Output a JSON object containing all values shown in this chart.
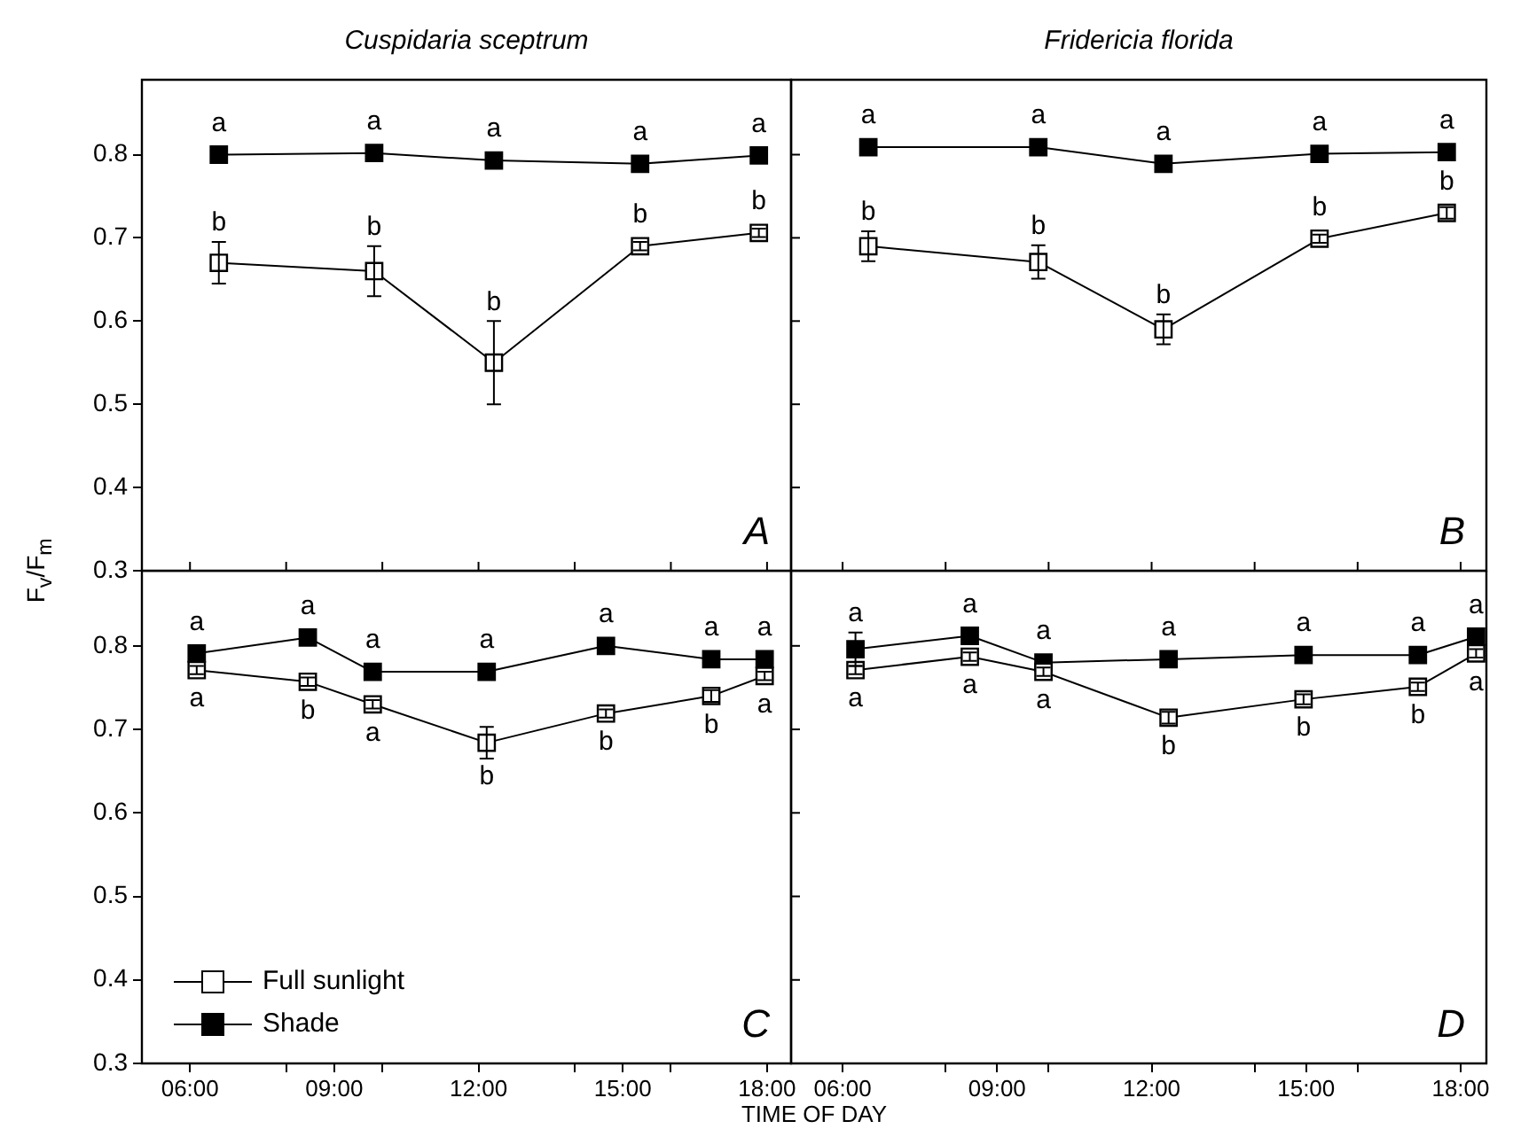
{
  "chart_data": [
    {
      "type": "line",
      "title": "Cuspidaria sceptrum",
      "ylabel": "F$_{v}$/F$_{m}$",
      "xlim": [
        5,
        18.5
      ],
      "ylim": [
        0.3,
        0.89
      ],
      "xticks": [
        {
          "value": 6,
          "label": null
        },
        {
          "value": 8,
          "label": null
        },
        {
          "value": 10,
          "label": null
        },
        {
          "value": 12,
          "label": null
        },
        {
          "value": 14,
          "label": null
        },
        {
          "value": 16,
          "label": null
        },
        {
          "value": 18,
          "label": null
        }
      ],
      "yticks": [
        0.3,
        0.4,
        0.5,
        0.6,
        0.7,
        0.8
      ],
      "tick_labels": "y",
      "grid": false,
      "legend": false,
      "marker": "square",
      "line_style": "solid",
      "series": [
        {
          "color": "#ffffff",
          "x": [
            6.6,
            9.83,
            12.32,
            15.36,
            17.83
          ],
          "values": [
            0.67,
            0.66,
            0.55,
            0.69,
            0.706
          ],
          "errors": [
            0.025,
            0.03,
            0.05,
            0.005,
            0.005
          ]
        },
        {
          "color": "#000000",
          "x": [
            6.6,
            9.83,
            12.32,
            15.36,
            17.83
          ],
          "values": [
            0.8,
            0.802,
            0.793,
            0.789,
            0.799
          ]
        }
      ],
      "annotations": [
        "A",
        {
          "text": "b",
          "x": 6.6,
          "y": 0.67
        },
        {
          "text": "b",
          "x": 9.83,
          "y": 0.66
        },
        {
          "text": "b",
          "x": 12.32,
          "y": 0.55
        },
        {
          "text": "b",
          "x": 15.36,
          "y": 0.69
        },
        {
          "text": "b",
          "x": 17.83,
          "y": 0.706
        },
        {
          "text": "a",
          "x": 6.6,
          "y": 0.8
        },
        {
          "text": "a",
          "x": 9.83,
          "y": 0.802
        },
        {
          "text": "a",
          "x": 12.32,
          "y": 0.793
        },
        {
          "text": "a",
          "x": 15.36,
          "y": 0.789
        },
        {
          "text": "a",
          "x": 17.83,
          "y": 0.799
        }
      ]
    },
    {
      "type": "line",
      "title": "Fridericia florida",
      "xlim": [
        5,
        18.5
      ],
      "ylim": [
        0.3,
        0.89
      ],
      "xticks": [
        {
          "value": 6,
          "label": null
        },
        {
          "value": 8,
          "label": null
        },
        {
          "value": 10,
          "label": null
        },
        {
          "value": 12,
          "label": null
        },
        {
          "value": 14,
          "label": null
        },
        {
          "value": 16,
          "label": null
        },
        {
          "value": 18,
          "label": null
        }
      ],
      "yticks": [
        {
          "value": 0.3,
          "label": null
        },
        {
          "value": 0.4,
          "label": null
        },
        {
          "value": 0.5,
          "label": null
        },
        {
          "value": 0.6,
          "label": null
        },
        {
          "value": 0.7,
          "label": null
        },
        {
          "value": 0.8,
          "label": null
        }
      ],
      "tick_labels": false,
      "grid": false,
      "legend": false,
      "marker": "square",
      "line_style": "solid",
      "series": [
        {
          "color": "#ffffff",
          "x": [
            6.5,
            9.8,
            12.23,
            15.26,
            17.73
          ],
          "values": [
            0.69,
            0.671,
            0.59,
            0.699,
            0.73
          ],
          "errors": [
            0.018,
            0.02,
            0.018,
            0.005,
            0.007
          ]
        },
        {
          "color": "#000000",
          "x": [
            6.5,
            9.8,
            12.23,
            15.26,
            17.73
          ],
          "values": [
            0.809,
            0.809,
            0.789,
            0.801,
            0.803
          ]
        }
      ],
      "annotations": [
        "B",
        {
          "text": "b",
          "x": 6.5,
          "y": 0.69
        },
        {
          "text": "b",
          "x": 9.8,
          "y": 0.671
        },
        {
          "text": "b",
          "x": 12.23,
          "y": 0.59
        },
        {
          "text": "b",
          "x": 15.26,
          "y": 0.699
        },
        {
          "text": "b",
          "x": 17.73,
          "y": 0.73
        },
        {
          "text": "a",
          "x": 6.5,
          "y": 0.809
        },
        {
          "text": "a",
          "x": 9.8,
          "y": 0.809
        },
        {
          "text": "a",
          "x": 12.23,
          "y": 0.789
        },
        {
          "text": "a",
          "x": 15.26,
          "y": 0.801
        },
        {
          "text": "a",
          "x": 17.73,
          "y": 0.803
        }
      ]
    },
    {
      "type": "line",
      "xlabel": "TIME OF DAY",
      "xlim": [
        5,
        18.5
      ],
      "ylim": [
        0.3,
        0.89
      ],
      "xticks": [
        {
          "value": 6,
          "label": "06:00"
        },
        {
          "value": 8,
          "label": null
        },
        {
          "value": 9,
          "label": "09:00"
        },
        {
          "value": 10,
          "label": null
        },
        {
          "value": 12,
          "label": "12:00"
        },
        {
          "value": 14,
          "label": null
        },
        {
          "value": 15,
          "label": "15:00"
        },
        {
          "value": 16,
          "label": null
        },
        {
          "value": 18,
          "label": "18:00"
        }
      ],
      "yticks": [
        0.3,
        0.4,
        0.5,
        0.6,
        0.7,
        0.8
      ],
      "grid": false,
      "legend": "bottom left",
      "marker": "square",
      "line_style": "solid",
      "series": [
        {
          "name": "Full sunlight",
          "color": "#ffffff",
          "x": [
            6.14,
            8.45,
            9.8,
            12.17,
            14.65,
            16.84,
            17.95
          ],
          "values": [
            0.771,
            0.757,
            0.73,
            0.684,
            0.719,
            0.74,
            0.764
          ],
          "errors": [
            0.005,
            0.005,
            0.005,
            0.019,
            0.005,
            0.007,
            0.005
          ]
        },
        {
          "name": "Shade",
          "color": "#000000",
          "x": [
            6.14,
            8.45,
            9.8,
            12.17,
            14.65,
            16.84,
            17.95
          ],
          "values": [
            0.791,
            0.81,
            0.769,
            0.769,
            0.8,
            0.784,
            0.784
          ]
        }
      ],
      "annotations": [
        "C",
        {
          "text": "a",
          "x": 6.14,
          "y": 0.771
        },
        {
          "text": "b",
          "x": 8.45,
          "y": 0.757
        },
        {
          "text": "a",
          "x": 9.8,
          "y": 0.73
        },
        {
          "text": "b",
          "x": 12.17,
          "y": 0.684
        },
        {
          "text": "b",
          "x": 14.65,
          "y": 0.719
        },
        {
          "text": "b",
          "x": 16.84,
          "y": 0.74
        },
        {
          "text": "a",
          "x": 17.95,
          "y": 0.764
        },
        {
          "text": "a",
          "x": 6.14,
          "y": 0.791
        },
        {
          "text": "a",
          "x": 8.45,
          "y": 0.81
        },
        {
          "text": "a",
          "x": 9.8,
          "y": 0.769
        },
        {
          "text": "a",
          "x": 12.17,
          "y": 0.769
        },
        {
          "text": "a",
          "x": 14.65,
          "y": 0.8
        },
        {
          "text": "a",
          "x": 16.84,
          "y": 0.784
        },
        {
          "text": "a",
          "x": 17.95,
          "y": 0.784
        }
      ]
    },
    {
      "type": "line",
      "xlim": [
        5,
        18.5
      ],
      "ylim": [
        0.3,
        0.89
      ],
      "xticks": [
        {
          "value": 6,
          "label": "06:00"
        },
        {
          "value": 8,
          "label": null
        },
        {
          "value": 9,
          "label": "09:00"
        },
        {
          "value": 10,
          "label": null
        },
        {
          "value": 12,
          "label": "12:00"
        },
        {
          "value": 14,
          "label": null
        },
        {
          "value": 15,
          "label": "15:00"
        },
        {
          "value": 16,
          "label": null
        },
        {
          "value": 18,
          "label": "18:00"
        }
      ],
      "yticks": [
        {
          "value": 0.3,
          "label": null
        },
        {
          "value": 0.4,
          "label": null
        },
        {
          "value": 0.5,
          "label": null
        },
        {
          "value": 0.6,
          "label": null
        },
        {
          "value": 0.7,
          "label": null
        },
        {
          "value": 0.8,
          "label": null
        }
      ],
      "tick_labels": "x",
      "grid": false,
      "legend": false,
      "marker": "square",
      "line_style": "solid",
      "series": [
        {
          "color": "#ffffff",
          "x": [
            6.25,
            8.47,
            9.9,
            12.33,
            14.95,
            17.17,
            18.3
          ],
          "values": [
            0.771,
            0.787,
            0.769,
            0.714,
            0.736,
            0.751,
            0.791
          ],
          "errors": [
            0.005,
            0.005,
            0.005,
            0.007,
            0.006,
            0.005,
            0.005
          ]
        },
        {
          "color": "#000000",
          "x": [
            6.25,
            8.47,
            9.9,
            12.33,
            14.95,
            17.17,
            18.3
          ],
          "values": [
            0.796,
            0.812,
            0.78,
            0.784,
            0.789,
            0.789,
            0.811
          ],
          "errors": [
            0.02,
            null,
            null,
            null,
            null,
            null,
            null
          ]
        }
      ],
      "annotations": [
        "D",
        {
          "text": "a",
          "x": 6.25,
          "y": 0.771
        },
        {
          "text": "a",
          "x": 8.47,
          "y": 0.787
        },
        {
          "text": "a",
          "x": 9.9,
          "y": 0.769
        },
        {
          "text": "b",
          "x": 12.33,
          "y": 0.714
        },
        {
          "text": "b",
          "x": 14.95,
          "y": 0.736
        },
        {
          "text": "b",
          "x": 17.17,
          "y": 0.751
        },
        {
          "text": "a",
          "x": 18.3,
          "y": 0.791
        },
        {
          "text": "a",
          "x": 6.25,
          "y": 0.796
        },
        {
          "text": "a",
          "x": 8.47,
          "y": 0.812
        },
        {
          "text": "a",
          "x": 9.9,
          "y": 0.78
        },
        {
          "text": "a",
          "x": 12.33,
          "y": 0.784
        },
        {
          "text": "a",
          "x": 14.95,
          "y": 0.789
        },
        {
          "text": "a",
          "x": 17.17,
          "y": 0.789
        },
        {
          "text": "a",
          "x": 18.3,
          "y": 0.811
        }
      ]
    }
  ]
}
